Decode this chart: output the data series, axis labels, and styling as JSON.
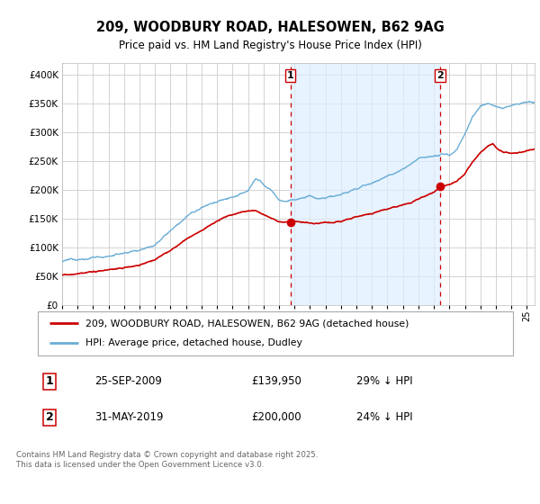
{
  "title": "209, WOODBURY ROAD, HALESOWEN, B62 9AG",
  "subtitle": "Price paid vs. HM Land Registry's House Price Index (HPI)",
  "hpi_color": "#6baed6",
  "price_color": "#cc0000",
  "shade_color": "#ddeeff",
  "marker1_date_x": 2009.73,
  "marker2_date_x": 2019.42,
  "legend1": "209, WOODBURY ROAD, HALESOWEN, B62 9AG (detached house)",
  "legend2": "HPI: Average price, detached house, Dudley",
  "table_row1_date": "25-SEP-2009",
  "table_row1_price": "£139,950",
  "table_row1_hpi": "29% ↓ HPI",
  "table_row2_date": "31-MAY-2019",
  "table_row2_price": "£200,000",
  "table_row2_hpi": "24% ↓ HPI",
  "footnote": "Contains HM Land Registry data © Crown copyright and database right 2025.\nThis data is licensed under the Open Government Licence v3.0.",
  "ylim": [
    0,
    420000
  ],
  "xlim_left": 1995.0,
  "xlim_right": 2025.5,
  "background_color": "#ffffff",
  "plot_bg_color": "#ffffff",
  "grid_color": "#cccccc"
}
